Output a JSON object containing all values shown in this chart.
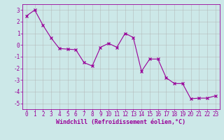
{
  "x": [
    0,
    1,
    2,
    3,
    4,
    5,
    6,
    7,
    8,
    9,
    10,
    11,
    12,
    13,
    14,
    15,
    16,
    17,
    18,
    19,
    20,
    21,
    22,
    23
  ],
  "y": [
    2.5,
    3.0,
    1.7,
    0.6,
    -0.3,
    -0.35,
    -0.4,
    -1.5,
    -1.8,
    -0.2,
    0.15,
    -0.2,
    1.0,
    0.65,
    -2.25,
    -1.2,
    -1.2,
    -2.8,
    -3.3,
    -3.3,
    -4.6,
    -4.55,
    -4.55,
    -4.35
  ],
  "line_color": "#990099",
  "marker": "x",
  "marker_size": 2.5,
  "bg_color": "#cce8e8",
  "grid_color": "#b0b0b0",
  "xlabel": "Windchill (Refroidissement éolien,°C)",
  "xlabel_color": "#990099",
  "tick_color": "#990099",
  "spine_color": "#990099",
  "ylim": [
    -5.5,
    3.5
  ],
  "xlim": [
    -0.5,
    23.5
  ],
  "yticks": [
    -5,
    -4,
    -3,
    -2,
    -1,
    0,
    1,
    2,
    3
  ],
  "xticks": [
    0,
    1,
    2,
    3,
    4,
    5,
    6,
    7,
    8,
    9,
    10,
    11,
    12,
    13,
    14,
    15,
    16,
    17,
    18,
    19,
    20,
    21,
    22,
    23
  ],
  "tick_fontsize": 5.5,
  "xlabel_fontsize": 6.0,
  "xlabel_fontweight": "bold"
}
